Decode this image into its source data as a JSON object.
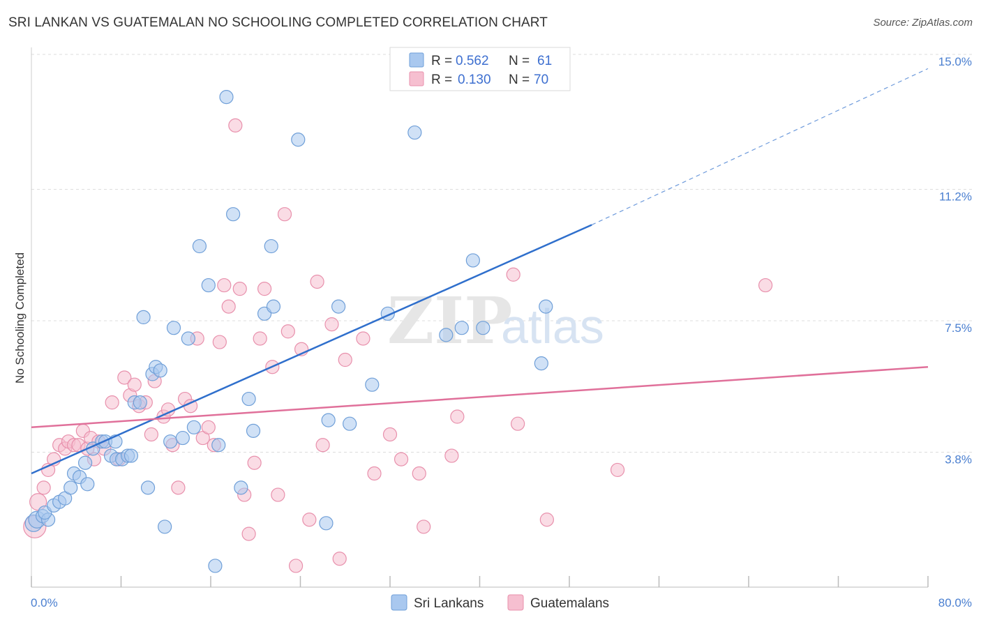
{
  "title": "SRI LANKAN VS GUATEMALAN NO SCHOOLING COMPLETED CORRELATION CHART",
  "source": "Source: ZipAtlas.com",
  "colors": {
    "blue_fill": "#a9c8ef",
    "blue_stroke": "#6f9fd8",
    "blue_line": "#2f6fcc",
    "pink_fill": "#f6bfd0",
    "pink_stroke": "#e890ac",
    "pink_line": "#e0709a",
    "grid": "#dddddd",
    "tick_text": "#4a7fd0"
  },
  "legend": {
    "r_label": "R =",
    "n_label": "N =",
    "entries": [
      {
        "r": "0.562",
        "n": "61"
      },
      {
        "r": "0.130",
        "n": "70"
      }
    ]
  },
  "chart_data": {
    "type": "scatter",
    "title": "SRI LANKAN VS GUATEMALAN NO SCHOOLING COMPLETED CORRELATION CHART",
    "xlabel": "",
    "ylabel": "No Schooling Completed",
    "xlim": [
      0,
      80
    ],
    "ylim": [
      0,
      15
    ],
    "x_tick_labels": [
      "0.0%",
      "80.0%"
    ],
    "y_ticks": [
      3.8,
      7.5,
      11.2,
      15.0
    ],
    "y_tick_labels": [
      "3.8%",
      "7.5%",
      "11.2%",
      "15.0%"
    ],
    "grid": true,
    "legend_position": "top-center",
    "series": [
      {
        "name": "Sri Lankans",
        "color": "#a9c8ef",
        "trend": {
          "x0": 0,
          "y0": 3.2,
          "x1": 50,
          "y1": 10.2,
          "dashed_to_x": 80,
          "dashed_to_y": 14.6
        },
        "points": [
          [
            0.2,
            1.8
          ],
          [
            0.5,
            1.9
          ],
          [
            1.0,
            2.0
          ],
          [
            1.5,
            1.9
          ],
          [
            1.2,
            2.1
          ],
          [
            2.0,
            2.3
          ],
          [
            2.5,
            2.4
          ],
          [
            3.0,
            2.5
          ],
          [
            3.5,
            2.8
          ],
          [
            3.8,
            3.2
          ],
          [
            4.3,
            3.1
          ],
          [
            5.0,
            2.9
          ],
          [
            4.8,
            3.5
          ],
          [
            5.5,
            3.9
          ],
          [
            6.3,
            4.1
          ],
          [
            6.6,
            4.1
          ],
          [
            7.1,
            3.7
          ],
          [
            7.5,
            4.1
          ],
          [
            7.6,
            3.6
          ],
          [
            8.1,
            3.6
          ],
          [
            8.6,
            3.7
          ],
          [
            8.9,
            3.7
          ],
          [
            9.2,
            5.2
          ],
          [
            9.7,
            5.2
          ],
          [
            10.0,
            7.6
          ],
          [
            10.4,
            2.8
          ],
          [
            10.8,
            6.0
          ],
          [
            11.1,
            6.2
          ],
          [
            11.5,
            6.1
          ],
          [
            11.9,
            1.7
          ],
          [
            12.4,
            4.1
          ],
          [
            12.7,
            7.3
          ],
          [
            13.5,
            4.2
          ],
          [
            14.0,
            7.0
          ],
          [
            14.5,
            4.5
          ],
          [
            15.0,
            9.6
          ],
          [
            15.8,
            8.5
          ],
          [
            16.4,
            0.6
          ],
          [
            16.7,
            4.0
          ],
          [
            17.4,
            13.8
          ],
          [
            18.0,
            10.5
          ],
          [
            18.7,
            2.8
          ],
          [
            19.4,
            5.3
          ],
          [
            19.8,
            4.4
          ],
          [
            20.8,
            7.7
          ],
          [
            21.4,
            9.6
          ],
          [
            21.6,
            7.9
          ],
          [
            23.8,
            12.6
          ],
          [
            26.5,
            4.7
          ],
          [
            26.3,
            1.8
          ],
          [
            27.4,
            7.9
          ],
          [
            28.4,
            4.6
          ],
          [
            30.4,
            5.7
          ],
          [
            31.8,
            7.7
          ],
          [
            34.2,
            12.8
          ],
          [
            37.0,
            7.1
          ],
          [
            38.4,
            7.3
          ],
          [
            39.4,
            9.2
          ],
          [
            40.3,
            7.3
          ],
          [
            45.5,
            6.3
          ],
          [
            45.9,
            7.9
          ]
        ]
      },
      {
        "name": "Guatemalans",
        "color": "#f6bfd0",
        "trend": {
          "x0": 0,
          "y0": 4.5,
          "x1": 80,
          "y1": 6.2
        },
        "points": [
          [
            0.3,
            1.7
          ],
          [
            0.6,
            2.4
          ],
          [
            1.1,
            2.8
          ],
          [
            1.5,
            3.3
          ],
          [
            2.0,
            3.6
          ],
          [
            2.5,
            4.0
          ],
          [
            3.0,
            3.9
          ],
          [
            3.3,
            4.1
          ],
          [
            3.8,
            4.0
          ],
          [
            4.2,
            4.0
          ],
          [
            4.6,
            4.4
          ],
          [
            5.0,
            3.9
          ],
          [
            5.3,
            4.2
          ],
          [
            5.6,
            3.6
          ],
          [
            6.0,
            4.1
          ],
          [
            6.5,
            3.9
          ],
          [
            7.2,
            5.2
          ],
          [
            7.8,
            3.6
          ],
          [
            8.3,
            5.9
          ],
          [
            8.8,
            5.4
          ],
          [
            9.2,
            5.7
          ],
          [
            9.6,
            5.1
          ],
          [
            10.2,
            5.2
          ],
          [
            10.7,
            4.3
          ],
          [
            11.0,
            5.8
          ],
          [
            11.8,
            4.8
          ],
          [
            12.2,
            5.0
          ],
          [
            12.6,
            4.0
          ],
          [
            13.1,
            2.8
          ],
          [
            13.7,
            5.3
          ],
          [
            14.2,
            5.1
          ],
          [
            14.8,
            7.0
          ],
          [
            15.3,
            4.2
          ],
          [
            15.8,
            4.5
          ],
          [
            16.3,
            4.0
          ],
          [
            16.8,
            6.9
          ],
          [
            17.2,
            8.5
          ],
          [
            17.6,
            7.9
          ],
          [
            18.2,
            13.0
          ],
          [
            18.6,
            8.4
          ],
          [
            19.0,
            2.6
          ],
          [
            19.4,
            1.5
          ],
          [
            19.9,
            3.5
          ],
          [
            20.4,
            7.0
          ],
          [
            20.8,
            8.4
          ],
          [
            21.5,
            6.2
          ],
          [
            22.0,
            2.6
          ],
          [
            22.6,
            10.5
          ],
          [
            22.9,
            7.2
          ],
          [
            23.6,
            0.6
          ],
          [
            24.1,
            6.7
          ],
          [
            24.8,
            1.9
          ],
          [
            25.5,
            8.6
          ],
          [
            26.0,
            4.0
          ],
          [
            26.8,
            7.4
          ],
          [
            27.5,
            0.8
          ],
          [
            28.0,
            6.4
          ],
          [
            29.6,
            7.0
          ],
          [
            30.6,
            3.2
          ],
          [
            32.0,
            4.3
          ],
          [
            33.0,
            3.6
          ],
          [
            34.6,
            3.2
          ],
          [
            35.0,
            1.7
          ],
          [
            37.5,
            3.7
          ],
          [
            38.0,
            4.8
          ],
          [
            43.0,
            8.8
          ],
          [
            43.4,
            4.6
          ],
          [
            46.0,
            1.9
          ],
          [
            52.3,
            3.3
          ],
          [
            65.5,
            8.5
          ]
        ]
      }
    ]
  },
  "bottom_legend": [
    {
      "label": "Sri Lankans"
    },
    {
      "label": "Guatemalans"
    }
  ],
  "watermark": {
    "part1": "ZIP",
    "part2": "atlas"
  }
}
